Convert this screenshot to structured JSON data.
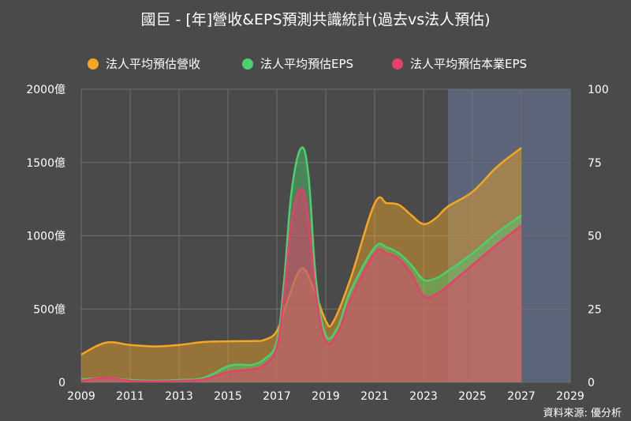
{
  "chart_data": {
    "type": "area",
    "title": "國巨 - [年]營收&EPS預測共識統計(過去vs法人預估)",
    "x_ticks": [
      "2009",
      "2011",
      "2013",
      "2015",
      "2017",
      "2019",
      "2021",
      "2023",
      "2025",
      "2027",
      "2029"
    ],
    "xlim": [
      2009,
      2029
    ],
    "y_left": {
      "ticks": [
        "0",
        "500億",
        "1000億",
        "1500億",
        "2000億"
      ],
      "ylim": [
        0,
        2000
      ],
      "unit": "億"
    },
    "y_right": {
      "ticks": [
        "0",
        "25",
        "50",
        "75",
        "100"
      ],
      "ylim": [
        0,
        100
      ]
    },
    "forecast_region": {
      "from": 2024,
      "to": 2029,
      "color": "#5b6478"
    },
    "grid": true,
    "legend_position": "top",
    "series": [
      {
        "name": "法人平均預估營收",
        "axis": "left",
        "color": "#f5a623",
        "x": [
          2009,
          2010,
          2011,
          2012,
          2013,
          2014,
          2015,
          2016,
          2016.5,
          2017,
          2017.4,
          2018,
          2018.5,
          2019,
          2019.3,
          2020,
          2021,
          2021.5,
          2022,
          2022.5,
          2023,
          2023.5,
          2024,
          2025,
          2026,
          2027
        ],
        "values": [
          190,
          270,
          255,
          245,
          255,
          275,
          280,
          282,
          290,
          350,
          540,
          775,
          640,
          420,
          410,
          700,
          1220,
          1222,
          1210,
          1140,
          1080,
          1120,
          1200,
          1300,
          1470,
          1600
        ]
      },
      {
        "name": "法人平均預估EPS",
        "axis": "right",
        "color": "#4ccf6e",
        "x": [
          2009,
          2010,
          2011,
          2012,
          2013,
          2014,
          2015,
          2015.5,
          2016,
          2016.5,
          2017,
          2017.3,
          2017.6,
          2018,
          2018.3,
          2018.6,
          2019,
          2019.5,
          2020,
          2021,
          2021.5,
          2022,
          2022.5,
          2023,
          2023.5,
          2024,
          2025,
          2026,
          2027
        ],
        "values": [
          1,
          1.5,
          0.8,
          0.5,
          0.8,
          1.5,
          5.5,
          6,
          6,
          8,
          14,
          35,
          65,
          80,
          70,
          35,
          16,
          19,
          31,
          46,
          46,
          44,
          40,
          35,
          35.5,
          38,
          44,
          51,
          57
        ]
      },
      {
        "name": "法人平均預估本業EPS",
        "axis": "right",
        "color": "#e83e6c",
        "x": [
          2009,
          2010,
          2011,
          2012,
          2013,
          2014,
          2015,
          2015.5,
          2016,
          2016.5,
          2017,
          2017.3,
          2017.6,
          2018,
          2018.3,
          2018.6,
          2019,
          2019.5,
          2020,
          2021,
          2021.5,
          2022,
          2022.5,
          2023,
          2023.5,
          2024,
          2025,
          2026,
          2027
        ],
        "values": [
          0.5,
          1.5,
          0.5,
          0.3,
          0.5,
          1,
          3.5,
          4,
          4.5,
          6,
          12,
          30,
          55,
          66,
          55,
          30,
          14,
          17,
          28,
          44,
          44,
          42,
          37,
          29.5,
          30,
          33,
          40,
          47,
          53.5
        ]
      }
    ]
  },
  "source": "資料來源: 優分析"
}
